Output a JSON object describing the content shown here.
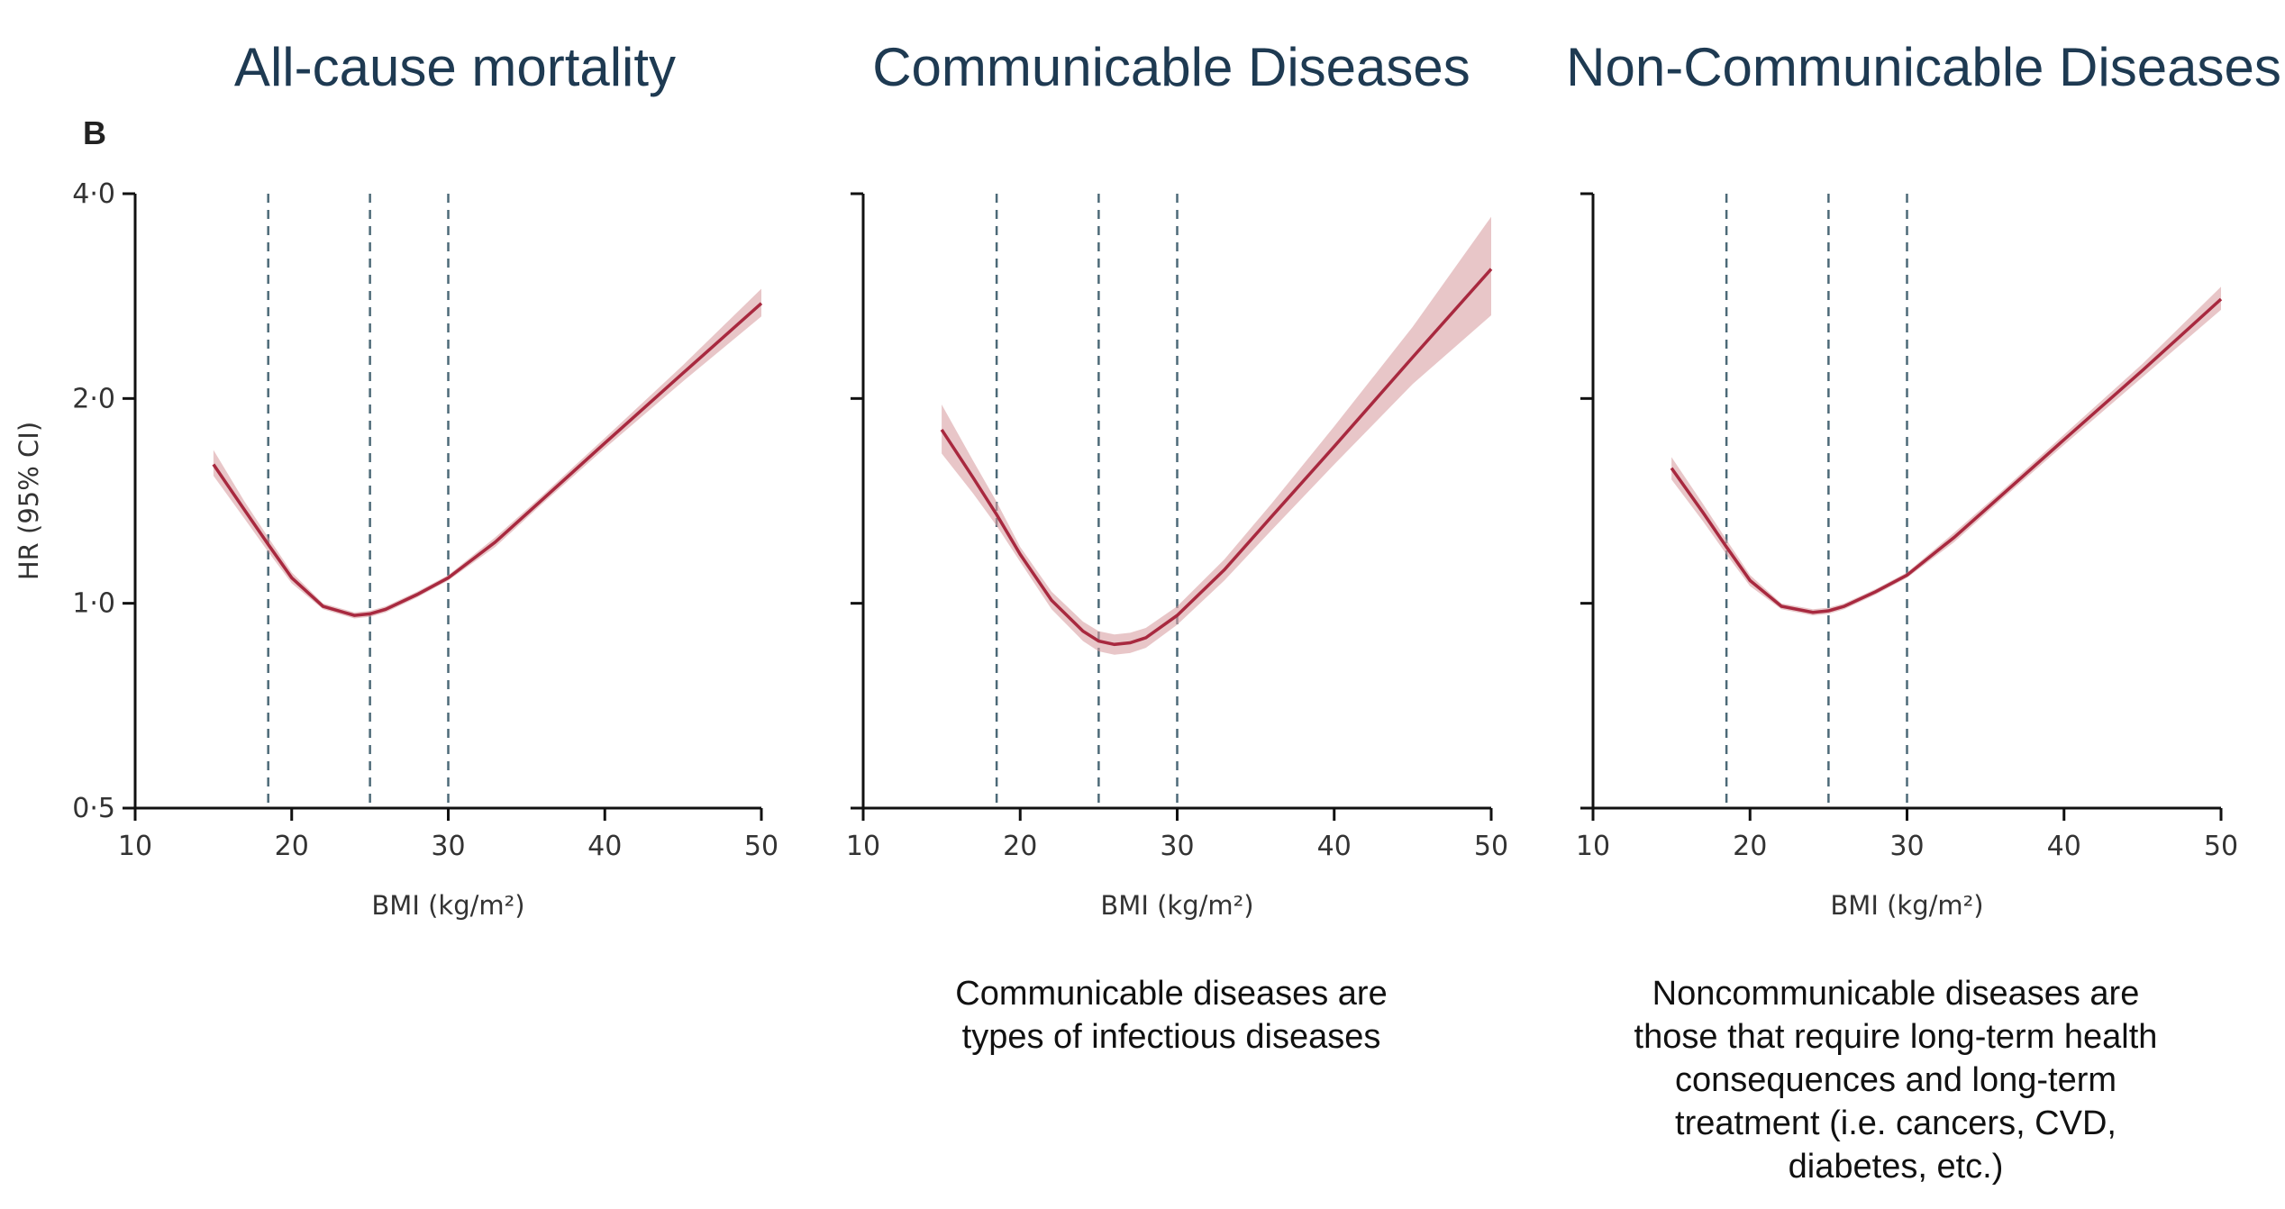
{
  "panel_letter": "B",
  "chart_data": [
    {
      "type": "line",
      "title": "All-cause mortality",
      "xlabel": "BMI (kg/m²)",
      "ylabel": "HR (95% CI)",
      "xlim": [
        10,
        50
      ],
      "ylim": [
        0.5,
        4.0
      ],
      "yscale": "log",
      "xticks": [
        10,
        20,
        30,
        40,
        50
      ],
      "xtick_labels": [
        "10",
        "20",
        "30",
        "40",
        "50"
      ],
      "yticks": [
        0.5,
        1.0,
        2.0,
        4.0
      ],
      "ytick_labels": [
        "0·5",
        "1·0",
        "2·0",
        "4·0"
      ],
      "reference_lines_x": [
        18.5,
        25,
        30
      ],
      "series": [
        {
          "x": [
            15,
            17,
            18.5,
            20,
            22,
            24,
            25,
            26,
            28,
            30,
            33,
            36,
            40,
            45,
            50
          ],
          "y": [
            1.6,
            1.37,
            1.22,
            1.09,
            0.99,
            0.96,
            0.965,
            0.98,
            1.03,
            1.09,
            1.23,
            1.42,
            1.72,
            2.18,
            2.76
          ],
          "lower": [
            1.54,
            1.33,
            1.19,
            1.07,
            0.98,
            0.95,
            0.955,
            0.97,
            1.02,
            1.08,
            1.21,
            1.4,
            1.69,
            2.12,
            2.64
          ],
          "upper": [
            1.68,
            1.41,
            1.25,
            1.11,
            1.0,
            0.97,
            0.975,
            0.99,
            1.04,
            1.1,
            1.25,
            1.44,
            1.75,
            2.24,
            2.9
          ]
        }
      ]
    },
    {
      "type": "line",
      "title": "Communicable Diseases",
      "xlabel": "BMI (kg/m²)",
      "xlim": [
        10,
        50
      ],
      "ylim": [
        0.5,
        4.0
      ],
      "yscale": "log",
      "xticks": [
        10,
        20,
        30,
        40,
        50
      ],
      "xtick_labels": [
        "10",
        "20",
        "30",
        "40",
        "50"
      ],
      "yticks": [
        0.5,
        1.0,
        2.0,
        4.0
      ],
      "reference_lines_x": [
        18.5,
        25,
        30
      ],
      "series": [
        {
          "x": [
            15,
            17,
            18.5,
            20,
            22,
            24,
            25,
            26,
            27,
            28,
            30,
            33,
            36,
            40,
            45,
            50
          ],
          "y": [
            1.8,
            1.53,
            1.35,
            1.18,
            1.01,
            0.91,
            0.88,
            0.87,
            0.875,
            0.89,
            0.96,
            1.12,
            1.34,
            1.7,
            2.3,
            3.1
          ],
          "lower": [
            1.66,
            1.45,
            1.3,
            1.15,
            0.98,
            0.88,
            0.85,
            0.84,
            0.845,
            0.86,
            0.93,
            1.08,
            1.28,
            1.6,
            2.1,
            2.65
          ],
          "upper": [
            1.96,
            1.62,
            1.41,
            1.21,
            1.04,
            0.94,
            0.91,
            0.9,
            0.905,
            0.92,
            0.99,
            1.16,
            1.4,
            1.82,
            2.55,
            3.7
          ]
        }
      ]
    },
    {
      "type": "line",
      "title": "Non-Communicable Diseases",
      "xlabel": "BMI (kg/m²)",
      "xlim": [
        10,
        50
      ],
      "ylim": [
        0.5,
        4.0
      ],
      "yscale": "log",
      "xticks": [
        10,
        20,
        30,
        40,
        50
      ],
      "xtick_labels": [
        "10",
        "20",
        "30",
        "40",
        "50"
      ],
      "yticks": [
        0.5,
        1.0,
        2.0,
        4.0
      ],
      "reference_lines_x": [
        18.5,
        25,
        30
      ],
      "series": [
        {
          "x": [
            15,
            17,
            18.5,
            20,
            22,
            24,
            25,
            26,
            28,
            30,
            33,
            36,
            40,
            45,
            50
          ],
          "y": [
            1.58,
            1.36,
            1.21,
            1.08,
            0.99,
            0.97,
            0.975,
            0.99,
            1.04,
            1.1,
            1.25,
            1.44,
            1.74,
            2.2,
            2.8
          ],
          "lower": [
            1.52,
            1.32,
            1.18,
            1.06,
            0.98,
            0.96,
            0.965,
            0.98,
            1.03,
            1.09,
            1.23,
            1.42,
            1.71,
            2.15,
            2.7
          ],
          "upper": [
            1.64,
            1.4,
            1.24,
            1.1,
            1.0,
            0.98,
            0.985,
            1.0,
            1.05,
            1.11,
            1.27,
            1.46,
            1.77,
            2.25,
            2.92
          ]
        }
      ]
    }
  ],
  "notes": [
    [],
    [
      "Communicable diseases are",
      "types of infectious diseases"
    ],
    [
      "Noncommunicable diseases are",
      "those that require long-term health",
      "consequences and long-term",
      "treatment (i.e. cancers, CVD,",
      "diabetes, etc.)"
    ]
  ]
}
